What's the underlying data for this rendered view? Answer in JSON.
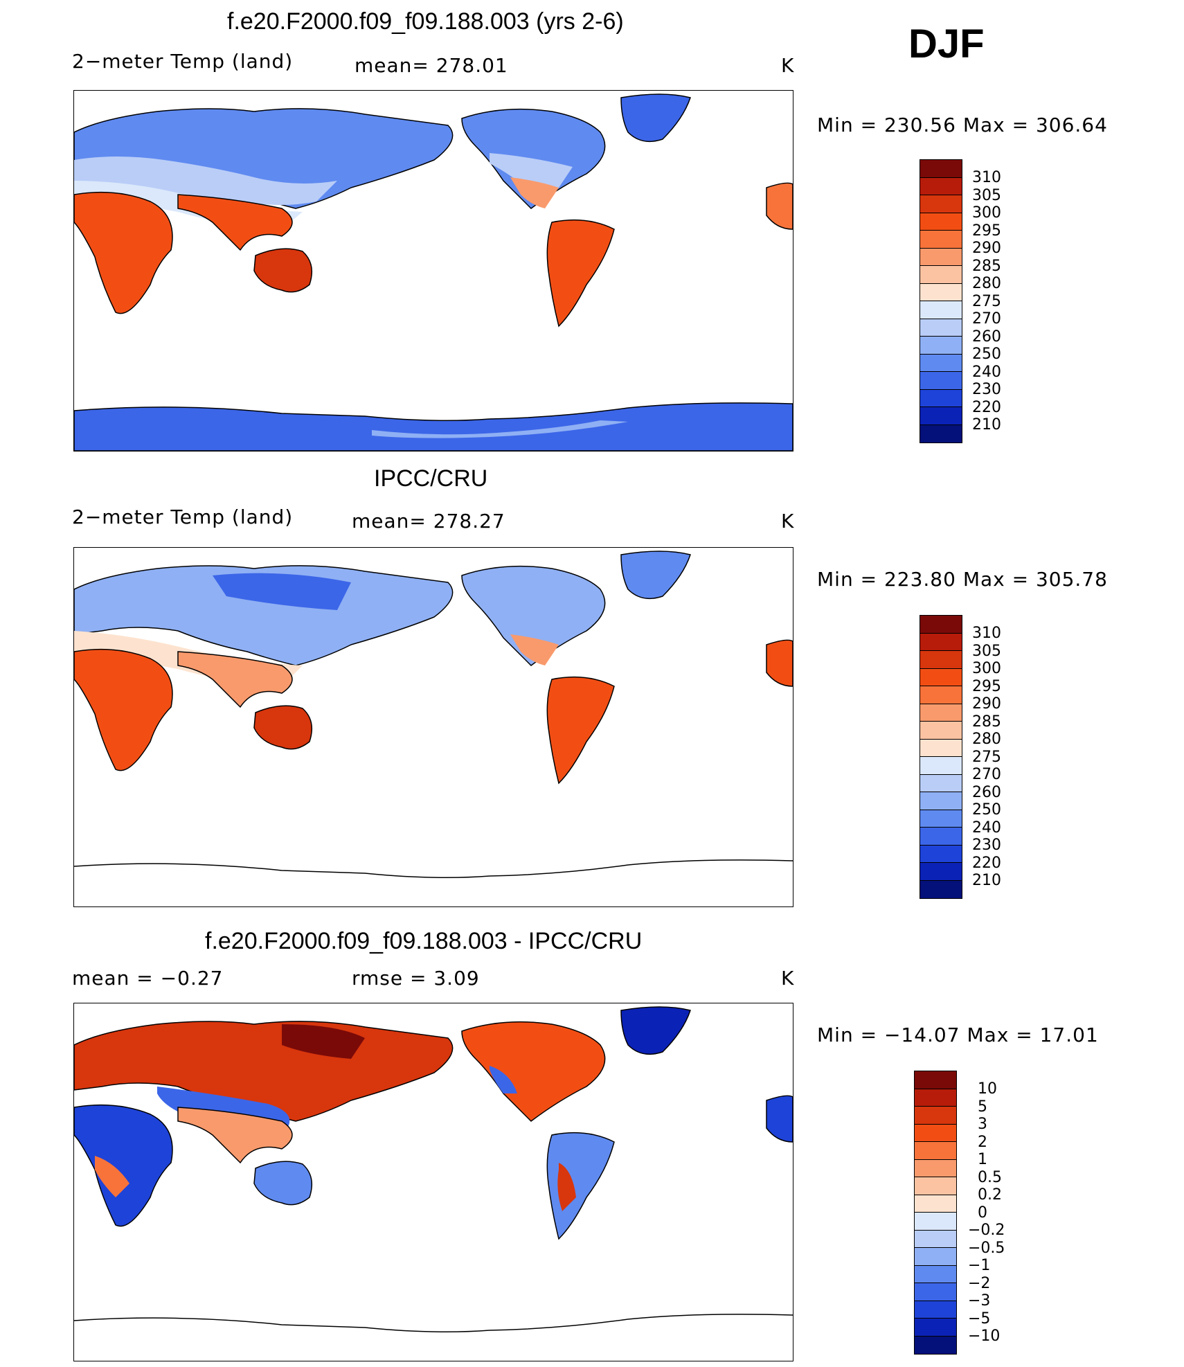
{
  "season": "DJF",
  "units": "K",
  "panels": [
    {
      "title": "f.e20.F2000.f09_f09.188.003 (yrs 2-6)",
      "left_label": "2−meter Temp (land)",
      "mid_label": "mean= 278.01",
      "units": "K",
      "minmax": "Min = 230.56  Max = 306.64",
      "colorbar_labels": [
        "310",
        "305",
        "300",
        "295",
        "290",
        "285",
        "280",
        "275",
        "270",
        "260",
        "250",
        "240",
        "230",
        "220",
        "210"
      ]
    },
    {
      "title": "IPCC/CRU",
      "left_label": "2−meter Temp (land)",
      "mid_label": "mean= 278.27",
      "units": "K",
      "minmax": "Min = 223.80  Max = 305.78",
      "colorbar_labels": [
        "310",
        "305",
        "300",
        "295",
        "290",
        "285",
        "280",
        "275",
        "270",
        "260",
        "250",
        "240",
        "230",
        "220",
        "210"
      ]
    },
    {
      "title": "f.e20.F2000.f09_f09.188.003 - IPCC/CRU",
      "left_label": "mean =   −0.27",
      "mid_label": "rmse =    3.09",
      "units": "K",
      "minmax": "Min = −14.07  Max =   17.01",
      "colorbar_labels": [
        "10",
        "5",
        "3",
        "2",
        "1",
        "0.5",
        "0.2",
        "0",
        "−0.2",
        "−0.5",
        "−1",
        "−2",
        "−3",
        "−5",
        "−10"
      ]
    }
  ],
  "colors": {
    "temp_scale": [
      "#7a0a08",
      "#b71c0a",
      "#d8360d",
      "#f24e14",
      "#f7733a",
      "#f99a6c",
      "#fbc3a2",
      "#fde3cf",
      "#dbe8fb",
      "#b9cdf7",
      "#8fb0f4",
      "#5f8af0",
      "#3c66e8",
      "#1e43d8",
      "#0b22b6",
      "#04117a"
    ],
    "diff_scale": [
      "#7a0a08",
      "#b71c0a",
      "#d8360d",
      "#f24e14",
      "#f7733a",
      "#f99a6c",
      "#fbc3a2",
      "#fde3cf",
      "#dbe8fb",
      "#b9cdf7",
      "#8fb0f4",
      "#5f8af0",
      "#3c66e8",
      "#1e43d8",
      "#0b22b6",
      "#04117a"
    ]
  }
}
